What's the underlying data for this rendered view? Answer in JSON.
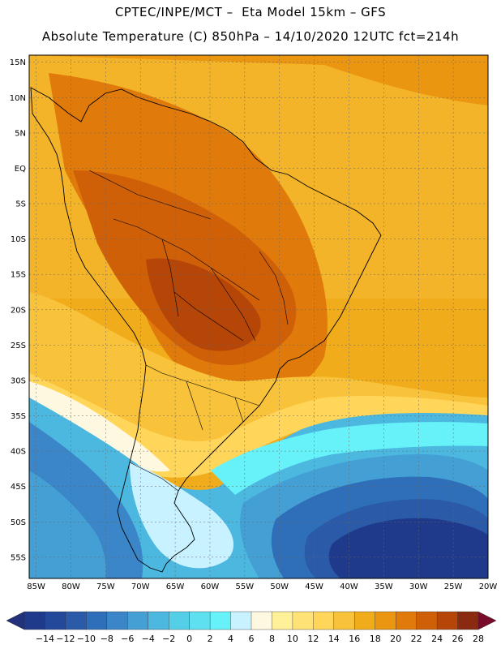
{
  "header": {
    "line1": "CPTEC/INPE/MCT –  Eta Model 15km – GFS",
    "line2": "Absolute Temperature (C) 850hPa – 14/10/2020 12UTC fct=214h"
  },
  "map": {
    "lat_labels": [
      "15N",
      "10N",
      "5N",
      "EQ",
      "5S",
      "10S",
      "15S",
      "20S",
      "25S",
      "30S",
      "35S",
      "40S",
      "45S",
      "50S",
      "55S"
    ],
    "lon_labels": [
      "85W",
      "80W",
      "75W",
      "70W",
      "65W",
      "60W",
      "55W",
      "50W",
      "45W",
      "40W",
      "35W",
      "30W",
      "25W",
      "20W"
    ],
    "lat_range": [
      -58,
      16
    ],
    "lon_range": [
      -86,
      -20
    ],
    "grid": true
  },
  "colorbar": {
    "labels": [
      "-14",
      "-12",
      "-10",
      "-8",
      "-6",
      "-4",
      "-2",
      "0",
      "2",
      "4",
      "6",
      "8",
      "10",
      "12",
      "14",
      "16",
      "18",
      "20",
      "22",
      "24",
      "26",
      "28"
    ],
    "colors": [
      "#1f3a8a",
      "#24489a",
      "#2a5aa8",
      "#2f6eb8",
      "#3a86c8",
      "#44a0d4",
      "#4cb8e0",
      "#55cfe8",
      "#5ee0f0",
      "#66f2f8",
      "#c8f2ff",
      "#fff8e0",
      "#fff09a",
      "#ffe276",
      "#ffd55a",
      "#f8c23a",
      "#f0ac1a",
      "#eb9610",
      "#e07a0a",
      "#d06008",
      "#b54608",
      "#8a2a10"
    ],
    "low_color": "#23307a",
    "high_color": "#7a0a2a"
  }
}
